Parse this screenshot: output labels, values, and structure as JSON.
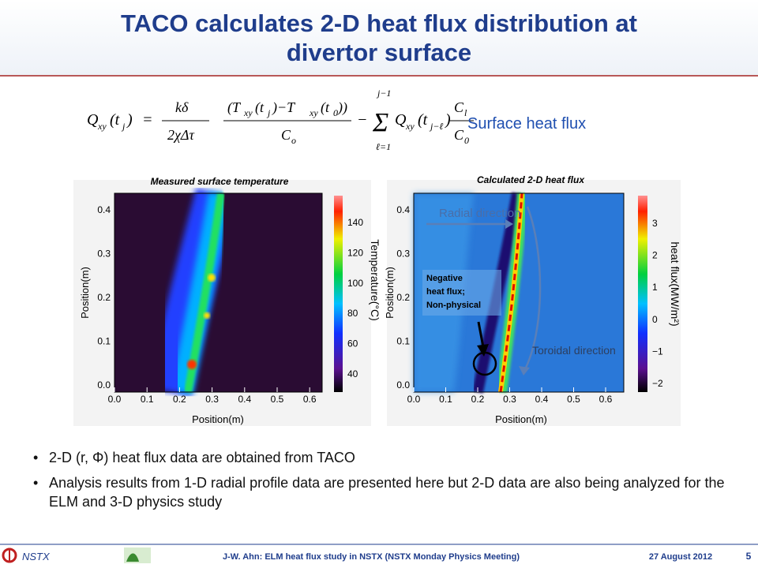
{
  "header": {
    "title_lines": [
      "TACO calculates 2-D heat flux distribution at",
      "divertor surface"
    ]
  },
  "equation": {
    "tokens": [
      "Q",
      "xy",
      "(t",
      "j",
      ")",
      "=",
      "kδ",
      "2χΔτ",
      "(T",
      "xy",
      "(t",
      "j",
      ")−T",
      "xy",
      "(t",
      "0",
      "))",
      "C",
      "o",
      "−",
      "j−1",
      "Σ",
      "ℓ=1",
      "Q",
      "xy",
      "(t",
      "j−ℓ",
      ")",
      "C",
      "l",
      "C",
      "0"
    ],
    "caption": "Surface heat flux"
  },
  "panels": [
    {
      "title": "Measured surface temperature",
      "x_label": "Position(m)",
      "y_label": "Position(m)",
      "xticks": [
        "0.0",
        "0.1",
        "0.2",
        "0.3",
        "0.4",
        "0.5",
        "0.6"
      ],
      "yticks": [
        "0.0",
        "0.1",
        "0.2",
        "0.3",
        "0.4"
      ],
      "colorbar_label": "Temperature(°C)",
      "colorbar_ticks": [
        "40",
        "60",
        "80",
        "100",
        "120",
        "140"
      ]
    },
    {
      "title": "Calculated  2-D heat flux",
      "x_label": "Position(m)",
      "y_label": "Position(m)",
      "xticks": [
        "0.0",
        "0.1",
        "0.2",
        "0.3",
        "0.4",
        "0.5",
        "0.6"
      ],
      "yticks": [
        "0.0",
        "0.1",
        "0.2",
        "0.3",
        "0.4"
      ],
      "colorbar_label": "heat flux(MW/m²)",
      "colorbar_ticks": [
        "−2",
        "−1",
        "0",
        "1",
        "2",
        "3"
      ],
      "annotations": [
        "Radial direction",
        "Toroidal direction",
        "Negative",
        "heat flux;",
        "Non-physical"
      ]
    }
  ],
  "bullets": [
    "2-D (r, Φ) heat flux data are obtained from TACO",
    "Analysis results from 1-D radial profile data are presented here but 2-D data are also being analyzed for the ELM and 3-D physics study"
  ],
  "footer": {
    "org": "NSTX",
    "text": "J-W. Ahn: ELM heat flux study in NSTX (NSTX Monday Physics Meeting)",
    "date": "27 August 2012",
    "page": "5"
  }
}
